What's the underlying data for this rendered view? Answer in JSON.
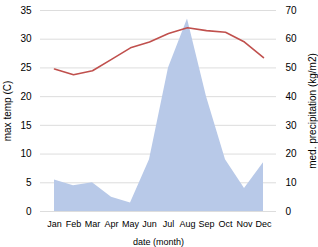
{
  "chart_data": {
    "type": "line",
    "xlabel": "date (month)",
    "ylabel": "max temp (C)",
    "y2label": "med. precipitation (kg/m2)",
    "categories": [
      "Jan",
      "Feb",
      "Mar",
      "Apr",
      "May",
      "Jun",
      "Jul",
      "Aug",
      "Sep",
      "Oct",
      "Nov",
      "Dec"
    ],
    "series": [
      {
        "type": "area",
        "color": "#b8c9e8",
        "axis": "y2",
        "values": [
          11,
          9,
          10,
          5,
          3,
          18,
          50,
          67,
          40,
          18,
          8,
          17
        ]
      },
      {
        "type": "line",
        "color": "#c0504d",
        "values": [
          24.8,
          23.8,
          24.5,
          26.5,
          28.5,
          29.5,
          31.0,
          32.0,
          31.5,
          31.2,
          29.5,
          26.8
        ]
      }
    ],
    "ylim": [
      0,
      35
    ],
    "yticks": [
      0,
      5,
      10,
      15,
      20,
      25,
      30,
      35
    ],
    "y2lim": [
      0,
      70
    ],
    "y2ticks": [
      0,
      10,
      20,
      30,
      40,
      50,
      60,
      70
    ],
    "grid": true
  }
}
